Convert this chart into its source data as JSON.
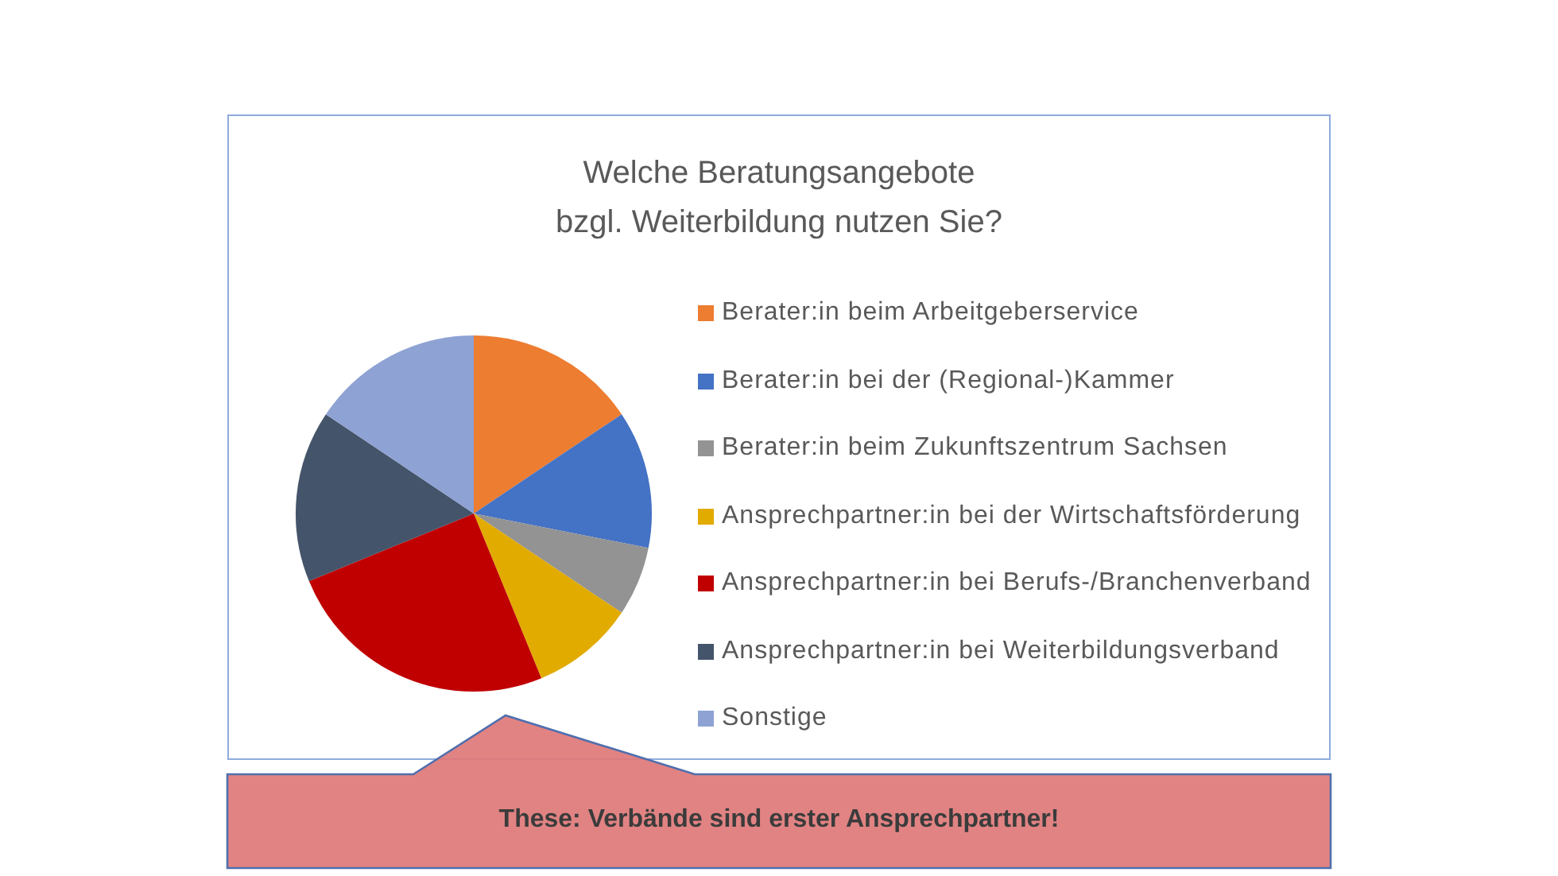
{
  "chart_data": {
    "type": "pie",
    "title": "Welche Beratungsangebote\nbzgl. Weiterbildung nutzen Sie?",
    "categories": [
      "Berater:in beim Arbeitgeberservice",
      "Berater:in bei der (Regional-)Kammer",
      "Berater:in beim Zukunftszentrum Sachsen",
      "Ansprechpartner:in bei der Wirtschaftsförderung",
      "Ansprechpartner:in bei Berufs-/Branchenverband",
      "Ansprechpartner:in bei Weiterbildungsverband",
      "Sonstige"
    ],
    "values": [
      15.6,
      12.5,
      6.3,
      9.4,
      25,
      15.6,
      15.6
    ],
    "colors": [
      "#ed7d31",
      "#4472c4",
      "#939393",
      "#e2ab00",
      "#c00000",
      "#44546a",
      "#8ea2d4"
    ],
    "legend": "right",
    "annotations": [
      "These: Verbände sind erster Ansprechpartner!"
    ]
  }
}
